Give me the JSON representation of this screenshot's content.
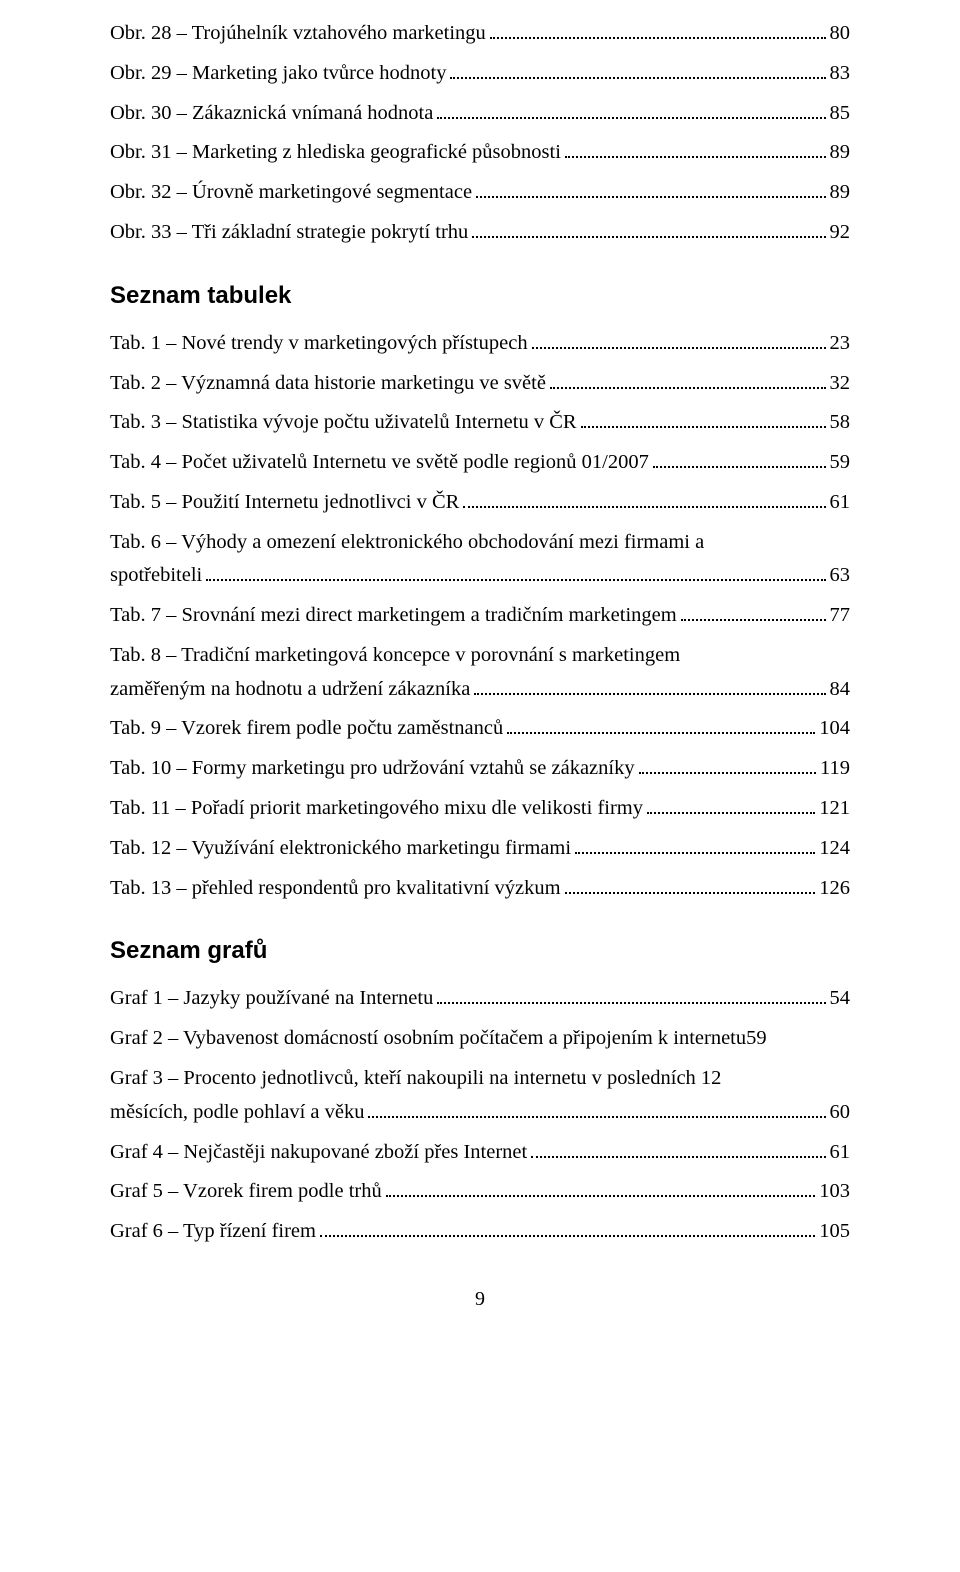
{
  "sections": {
    "figures": {
      "entries": [
        {
          "label": "Obr. 28 – Trojúhelník vztahového marketingu",
          "page": "80"
        },
        {
          "label": "Obr. 29 – Marketing jako tvůrce hodnoty",
          "page": "83"
        },
        {
          "label": "Obr. 30 – Zákaznická vnímaná hodnota",
          "page": "85"
        },
        {
          "label": "Obr. 31 – Marketing z hlediska geografické působnosti",
          "page": "89"
        },
        {
          "label": "Obr. 32 – Úrovně marketingové segmentace",
          "page": "89"
        },
        {
          "label": "Obr. 33 – Tři základní strategie pokrytí trhu",
          "page": "92"
        }
      ]
    },
    "tables": {
      "heading": "Seznam tabulek",
      "entries": [
        {
          "label": "Tab. 1 – Nové trendy v marketingových přístupech",
          "page": "23"
        },
        {
          "label": "Tab. 2 – Významná data historie marketingu ve světě",
          "page": "32"
        },
        {
          "label": "Tab. 3 – Statistika vývoje počtu uživatelů Internetu v ČR",
          "page": "58"
        },
        {
          "label": "Tab. 4 – Počet uživatelů Internetu ve světě podle regionů 01/2007",
          "page": "59"
        },
        {
          "label": "Tab. 5 – Použití Internetu jednotlivci v ČR",
          "page": "61"
        },
        {
          "label_line1": "Tab. 6 – Výhody a omezení elektronického obchodování mezi firmami a",
          "label_line2": "spotřebiteli",
          "page": "63",
          "multiline": true
        },
        {
          "label": "Tab. 7 – Srovnání mezi direct marketingem a tradičním marketingem",
          "page": "77"
        },
        {
          "label_line1": "Tab. 8 – Tradiční marketingová koncepce v porovnání s marketingem",
          "label_line2": "zaměřeným na hodnotu a udržení zákazníka",
          "page": "84",
          "multiline": true
        },
        {
          "label": "Tab. 9 – Vzorek firem podle počtu zaměstnanců",
          "page": "104"
        },
        {
          "label": "Tab. 10 – Formy marketingu pro udržování vztahů se zákazníky",
          "page": "119"
        },
        {
          "label": "Tab. 11 – Pořadí priorit marketingového mixu dle velikosti firmy",
          "page": "121"
        },
        {
          "label": "Tab. 12 – Využívání elektronického marketingu firmami",
          "page": "124"
        },
        {
          "label": "Tab. 13 – přehled respondentů pro kvalitativní výzkum",
          "page": "126"
        }
      ]
    },
    "charts": {
      "heading": "Seznam grafů",
      "entries": [
        {
          "label": "Graf 1 – Jazyky používané na Internetu",
          "page": "54"
        },
        {
          "label": "Graf 2 – Vybavenost domácností osobním počítačem a připojením k internetu",
          "page": "59",
          "nodots": true
        },
        {
          "label_line1": "Graf 3 – Procento jednotlivců, kteří nakoupili na internetu v posledních 12",
          "label_line2": "měsících, podle pohlaví a věku",
          "page": "60",
          "multiline": true
        },
        {
          "label": "Graf 4 – Nejčastěji nakupované zboží přes Internet",
          "page": "61"
        },
        {
          "label": "Graf 5 – Vzorek firem podle trhů",
          "page": "103"
        },
        {
          "label": "Graf 6 – Typ řízení firem",
          "page": "105"
        }
      ]
    }
  },
  "page_number": "9"
}
